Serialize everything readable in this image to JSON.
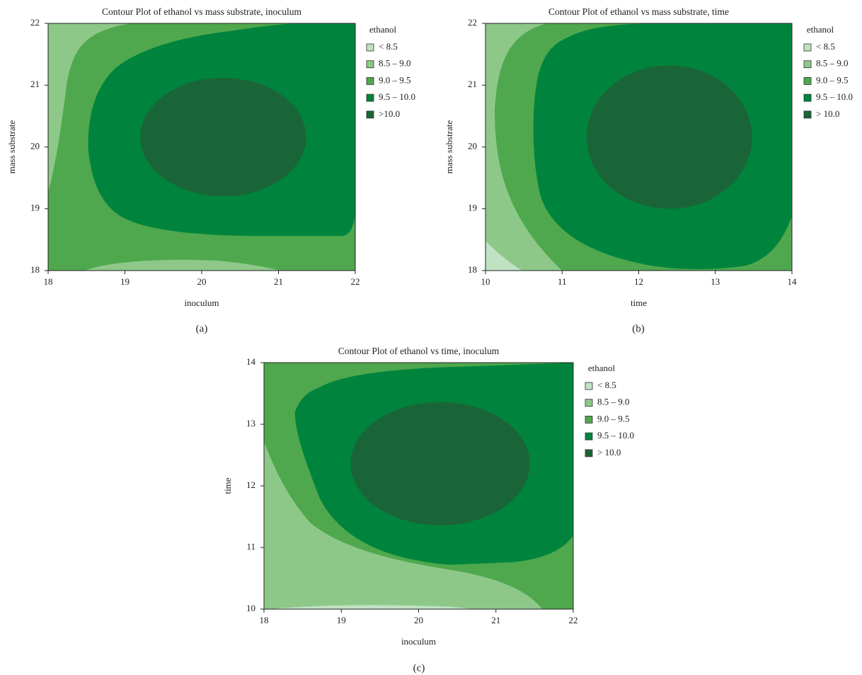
{
  "chart_data": [
    {
      "type": "contour",
      "title": "Contour Plot of ethanol vs mass substrate, inoculum",
      "x_label": "inoculum",
      "y_label": "mass substrate",
      "panel_label": "(a)",
      "xlim": [
        18,
        22
      ],
      "xticks": [
        18,
        19,
        20,
        21,
        22
      ],
      "ylim": [
        18,
        22
      ],
      "yticks": [
        18,
        19,
        20,
        21,
        22
      ],
      "legend_title": "ethanol",
      "levels": [
        {
          "name": "< 8.5",
          "color": "#bfe2c3"
        },
        {
          "name": "8.5 – 9.0",
          "color": "#8dc889"
        },
        {
          "name": "9.0 – 9.5",
          "color": "#4fa84d"
        },
        {
          "name": "9.5 – 10.0",
          "color": "#00843d"
        },
        {
          "name": ">10.0",
          "color": "#1a6537"
        }
      ]
    },
    {
      "type": "contour",
      "title": "Contour Plot of ethanol vs mass substrate, time",
      "x_label": "time",
      "y_label": "mass substrate",
      "panel_label": "(b)",
      "xlim": [
        10,
        14
      ],
      "xticks": [
        10,
        11,
        12,
        13,
        14
      ],
      "ylim": [
        18,
        22
      ],
      "yticks": [
        18,
        19,
        20,
        21,
        22
      ],
      "legend_title": "ethanol",
      "levels": [
        {
          "name": "< 8.5",
          "color": "#bfe2c3"
        },
        {
          "name": "8.5 – 9.0",
          "color": "#8dc889"
        },
        {
          "name": "9.0 – 9.5",
          "color": "#4fa84d"
        },
        {
          "name": "9.5 – 10.0",
          "color": "#00843d"
        },
        {
          "name": "> 10.0",
          "color": "#1a6537"
        }
      ]
    },
    {
      "type": "contour",
      "title": "Contour Plot of ethanol vs time, inoculum",
      "x_label": "inoculum",
      "y_label": "time",
      "panel_label": "(c)",
      "xlim": [
        18,
        22
      ],
      "xticks": [
        18,
        19,
        20,
        21,
        22
      ],
      "ylim": [
        10,
        14
      ],
      "yticks": [
        10,
        11,
        12,
        13,
        14
      ],
      "legend_title": "ethanol",
      "levels": [
        {
          "name": "< 8.5",
          "color": "#bfe2c3"
        },
        {
          "name": "8.5 – 9.0",
          "color": "#8dc889"
        },
        {
          "name": "9.0 – 9.5",
          "color": "#4fa84d"
        },
        {
          "name": "9.5 – 10.0",
          "color": "#00843d"
        },
        {
          "name": "> 10.0",
          "color": "#1a6537"
        }
      ]
    }
  ]
}
